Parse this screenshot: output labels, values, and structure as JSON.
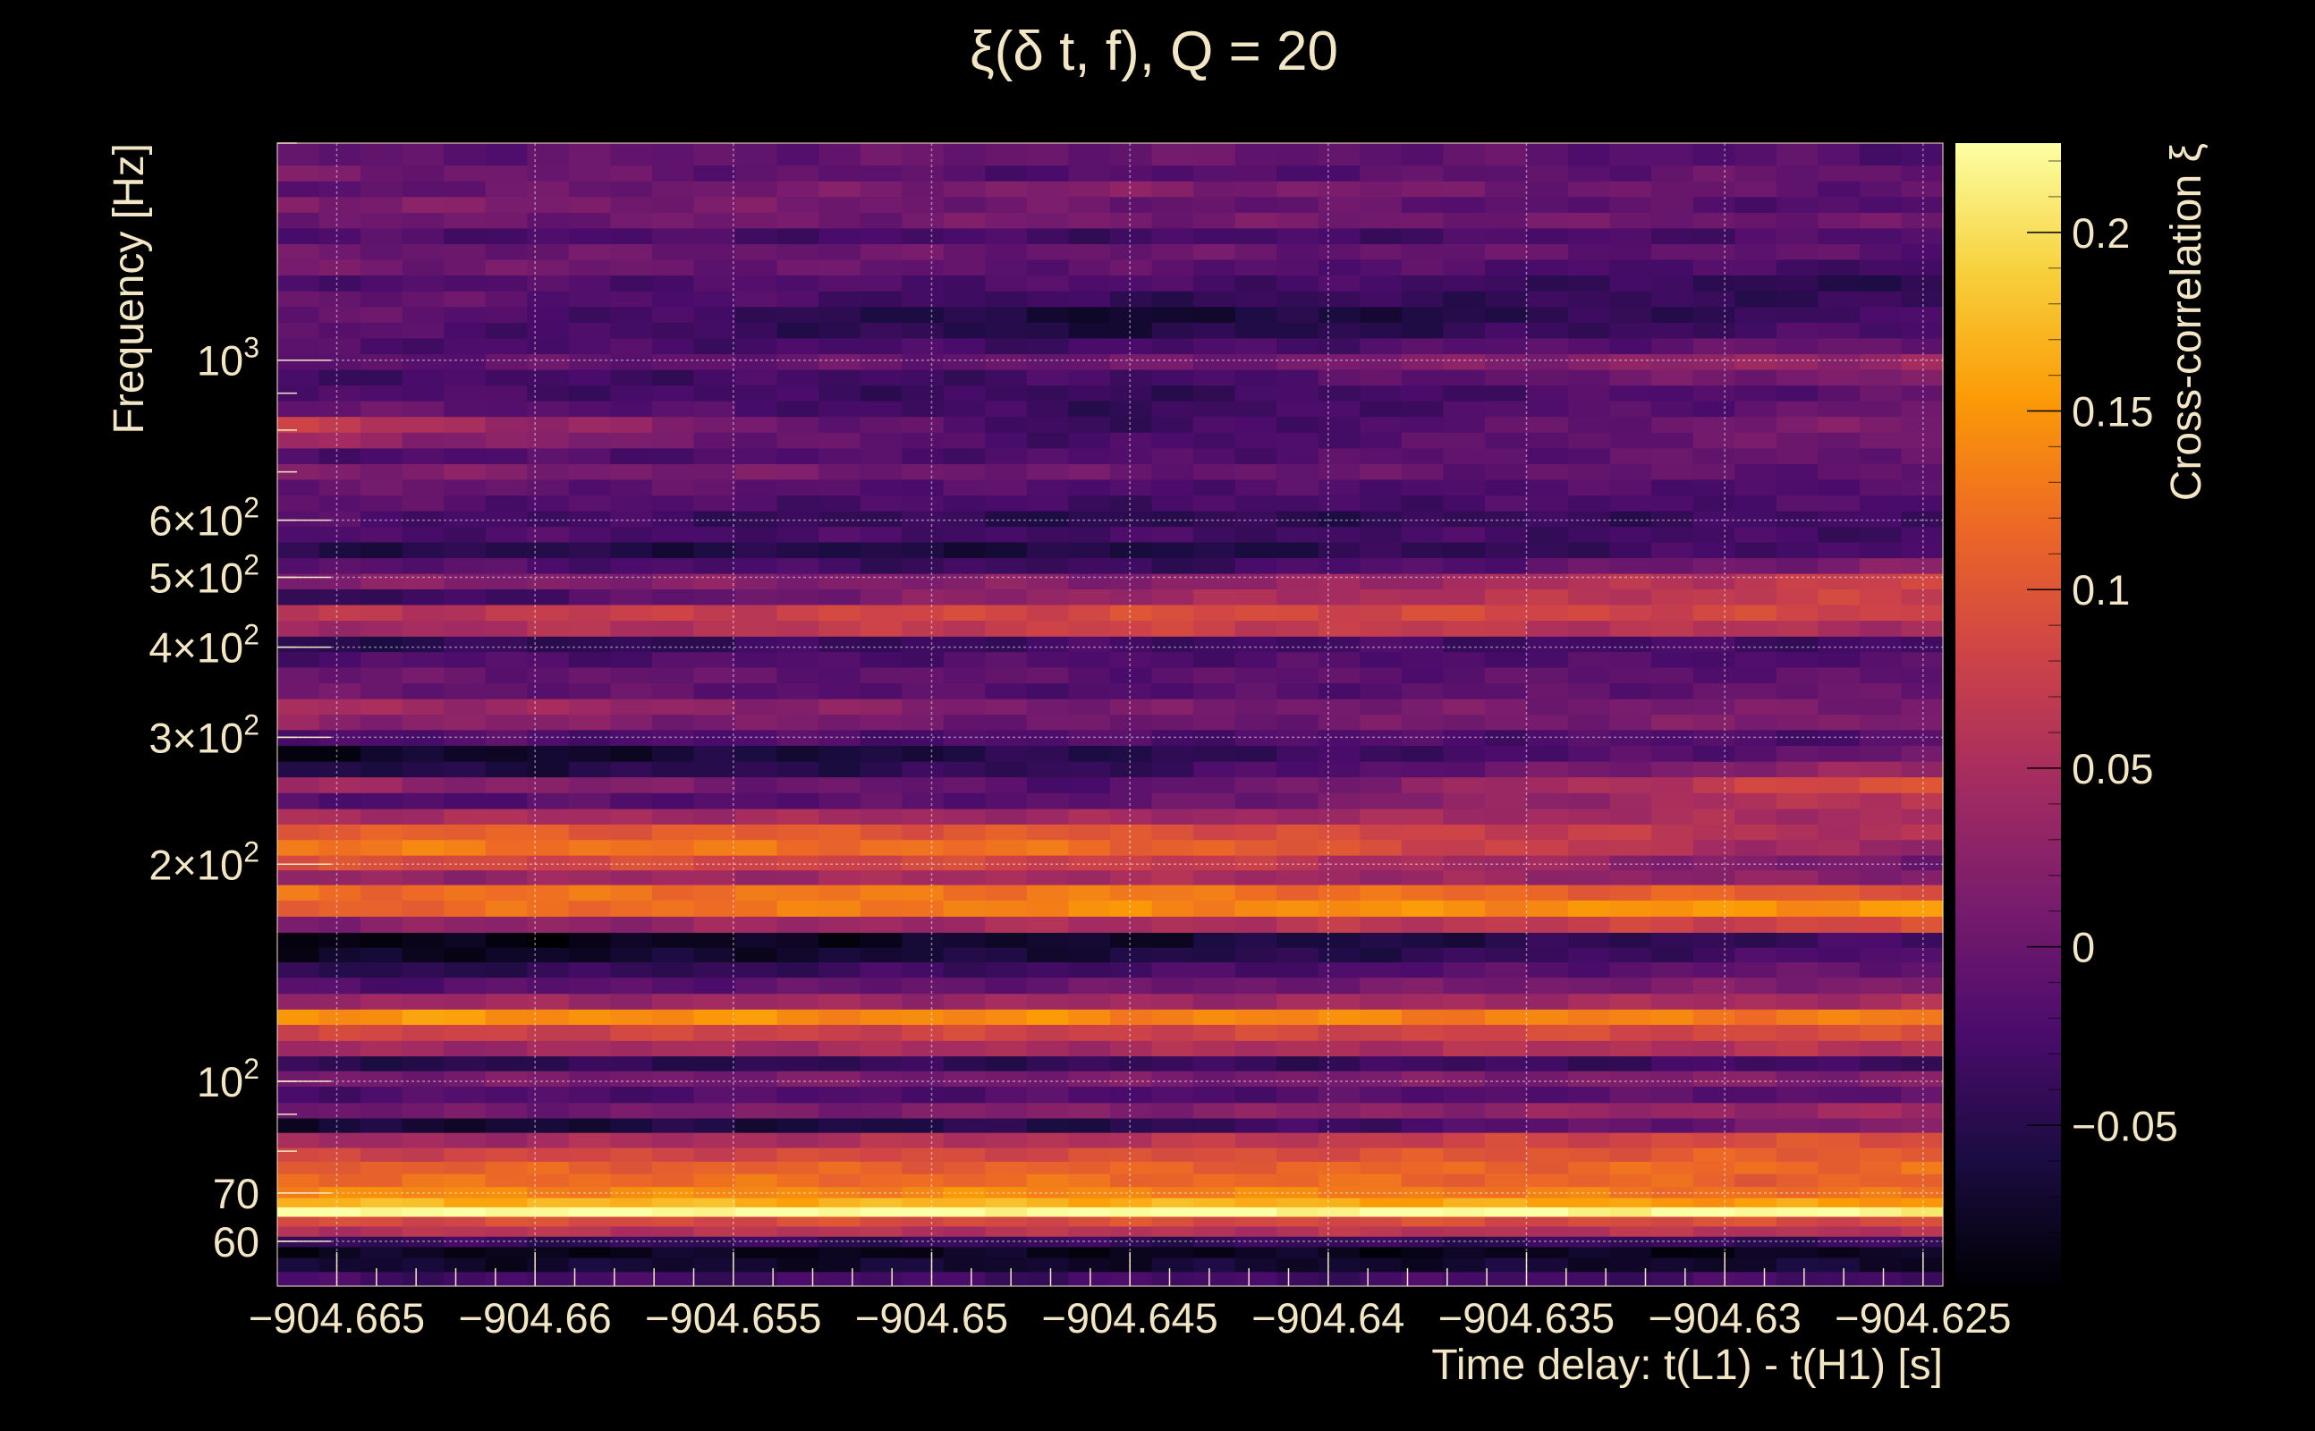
{
  "chart_data": {
    "type": "heatmap",
    "title": "ξ(δ t, f), Q = 20",
    "xlabel": "Time delay: t(L1) - t(H1) [s]",
    "ylabel": "Frequency [Hz]",
    "colorbar_label": "Cross-correlation ξ",
    "xlim": [
      -904.6665,
      -904.6245
    ],
    "ylim": [
      52,
      2000
    ],
    "yscale": "log",
    "zlim": [
      -0.095,
      0.225
    ],
    "grid": true,
    "colormap": [
      "#000004",
      "#1b0c41",
      "#4a0c6b",
      "#781c6d",
      "#a52c60",
      "#cf4446",
      "#ed6925",
      "#fb9b06",
      "#f7d13d",
      "#fcffa4"
    ],
    "x_ticks": [
      {
        "value": -904.665,
        "label": "−904.665"
      },
      {
        "value": -904.66,
        "label": "−904.66"
      },
      {
        "value": -904.655,
        "label": "−904.655"
      },
      {
        "value": -904.65,
        "label": "−904.65"
      },
      {
        "value": -904.645,
        "label": "−904.645"
      },
      {
        "value": -904.64,
        "label": "−904.64"
      },
      {
        "value": -904.635,
        "label": "−904.635"
      },
      {
        "value": -904.63,
        "label": "−904.63"
      },
      {
        "value": -904.625,
        "label": "−904.625"
      }
    ],
    "y_ticks": [
      {
        "value": 60,
        "label": "60"
      },
      {
        "value": 70,
        "label": "70"
      },
      {
        "value": 100,
        "label": "10",
        "sup": "2"
      },
      {
        "value": 200,
        "label": "2×10",
        "sup": "2"
      },
      {
        "value": 300,
        "label": "3×10",
        "sup": "2"
      },
      {
        "value": 400,
        "label": "4×10",
        "sup": "2"
      },
      {
        "value": 500,
        "label": "5×10",
        "sup": "2"
      },
      {
        "value": 600,
        "label": "6×10",
        "sup": "2"
      },
      {
        "value": 1000,
        "label": "10",
        "sup": "3"
      }
    ],
    "z_ticks": [
      {
        "value": -0.05,
        "label": "−0.05"
      },
      {
        "value": 0,
        "label": "0"
      },
      {
        "value": 0.05,
        "label": "0.05"
      },
      {
        "value": 0.1,
        "label": "0.1"
      },
      {
        "value": 0.15,
        "label": "0.15"
      },
      {
        "value": 0.2,
        "label": "0.2"
      }
    ],
    "bands": [
      {
        "f": 53,
        "z": [
          -0.03,
          -0.03,
          -0.03
        ]
      },
      {
        "f": 56,
        "z": [
          -0.07,
          -0.07,
          -0.07
        ]
      },
      {
        "f": 58,
        "z": [
          -0.08,
          -0.08,
          -0.08
        ]
      },
      {
        "f": 60,
        "z": [
          -0.04,
          -0.04,
          -0.04
        ]
      },
      {
        "f": 62,
        "z": [
          0.06,
          0.06,
          0.06
        ]
      },
      {
        "f": 64,
        "z": [
          0.09,
          0.09,
          0.09
        ]
      },
      {
        "f": 66,
        "z": [
          0.225,
          0.225,
          0.22
        ]
      },
      {
        "f": 68,
        "z": [
          0.17,
          0.17,
          0.15
        ]
      },
      {
        "f": 70,
        "z": [
          0.14,
          0.14,
          0.12
        ]
      },
      {
        "f": 73,
        "z": [
          0.12,
          0.12,
          0.11
        ]
      },
      {
        "f": 76,
        "z": [
          0.11,
          0.11,
          0.12
        ]
      },
      {
        "f": 79,
        "z": [
          0.08,
          0.09,
          0.11
        ]
      },
      {
        "f": 83,
        "z": [
          0.04,
          0.06,
          0.1
        ]
      },
      {
        "f": 87,
        "z": [
          -0.07,
          -0.05,
          0.02
        ]
      },
      {
        "f": 91,
        "z": [
          0.0,
          0.02,
          0.04
        ]
      },
      {
        "f": 96,
        "z": [
          -0.02,
          -0.02,
          -0.01
        ]
      },
      {
        "f": 101,
        "z": [
          0.01,
          0.01,
          0.02
        ]
      },
      {
        "f": 106,
        "z": [
          -0.05,
          -0.04,
          -0.03
        ]
      },
      {
        "f": 111,
        "z": [
          0.04,
          0.05,
          0.06
        ]
      },
      {
        "f": 117,
        "z": [
          0.08,
          0.08,
          0.09
        ]
      },
      {
        "f": 123,
        "z": [
          0.15,
          0.14,
          0.13
        ]
      },
      {
        "f": 129,
        "z": [
          0.04,
          0.04,
          0.05
        ]
      },
      {
        "f": 136,
        "z": [
          -0.02,
          0.0,
          0.02
        ]
      },
      {
        "f": 143,
        "z": [
          -0.05,
          -0.03,
          0.0
        ]
      },
      {
        "f": 150,
        "z": [
          -0.08,
          -0.06,
          -0.02
        ]
      },
      {
        "f": 157,
        "z": [
          -0.09,
          -0.07,
          -0.03
        ]
      },
      {
        "f": 165,
        "z": [
          0.02,
          0.05,
          0.09
        ]
      },
      {
        "f": 174,
        "z": [
          0.11,
          0.14,
          0.15
        ]
      },
      {
        "f": 183,
        "z": [
          0.12,
          0.13,
          0.1
        ]
      },
      {
        "f": 192,
        "z": [
          0.03,
          0.05,
          0.02
        ]
      },
      {
        "f": 201,
        "z": [
          0.09,
          0.08,
          0.0
        ]
      },
      {
        "f": 211,
        "z": [
          0.13,
          0.12,
          0.03
        ]
      },
      {
        "f": 222,
        "z": [
          0.11,
          0.1,
          0.05
        ]
      },
      {
        "f": 233,
        "z": [
          0.05,
          0.04,
          0.05
        ]
      },
      {
        "f": 245,
        "z": [
          -0.02,
          -0.01,
          0.07
        ]
      },
      {
        "f": 258,
        "z": [
          0.04,
          -0.02,
          0.1
        ]
      },
      {
        "f": 271,
        "z": [
          -0.06,
          -0.04,
          0.04
        ]
      },
      {
        "f": 285,
        "z": [
          -0.08,
          -0.05,
          0.0
        ]
      },
      {
        "f": 300,
        "z": [
          -0.02,
          -0.02,
          -0.02
        ]
      },
      {
        "f": 315,
        "z": [
          0.03,
          0.0,
          0.02
        ]
      },
      {
        "f": 331,
        "z": [
          0.05,
          0.01,
          0.01
        ]
      },
      {
        "f": 348,
        "z": [
          0.0,
          -0.02,
          0.0
        ]
      },
      {
        "f": 366,
        "z": [
          0.0,
          -0.01,
          -0.01
        ]
      },
      {
        "f": 385,
        "z": [
          -0.02,
          -0.02,
          -0.02
        ]
      },
      {
        "f": 404,
        "z": [
          -0.05,
          -0.03,
          -0.03
        ]
      },
      {
        "f": 425,
        "z": [
          0.04,
          0.08,
          0.05
        ]
      },
      {
        "f": 447,
        "z": [
          0.06,
          0.09,
          0.08
        ]
      },
      {
        "f": 470,
        "z": [
          -0.05,
          0.04,
          0.08
        ]
      },
      {
        "f": 494,
        "z": [
          0.02,
          0.02,
          0.08
        ]
      },
      {
        "f": 519,
        "z": [
          -0.01,
          -0.04,
          0.02
        ]
      },
      {
        "f": 546,
        "z": [
          -0.05,
          -0.06,
          -0.02
        ]
      },
      {
        "f": 574,
        "z": [
          -0.02,
          -0.03,
          -0.03
        ]
      },
      {
        "f": 603,
        "z": [
          -0.02,
          -0.05,
          -0.03
        ]
      },
      {
        "f": 634,
        "z": [
          -0.01,
          -0.03,
          -0.02
        ]
      },
      {
        "f": 667,
        "z": [
          0.0,
          -0.02,
          -0.02
        ]
      },
      {
        "f": 701,
        "z": [
          0.02,
          0.0,
          -0.01
        ]
      },
      {
        "f": 737,
        "z": [
          -0.02,
          -0.02,
          0.0
        ]
      },
      {
        "f": 775,
        "z": [
          0.04,
          -0.03,
          0.01
        ]
      },
      {
        "f": 815,
        "z": [
          0.07,
          -0.04,
          0.02
        ]
      },
      {
        "f": 857,
        "z": [
          0.0,
          -0.04,
          0.0
        ]
      },
      {
        "f": 901,
        "z": [
          -0.02,
          -0.04,
          -0.01
        ]
      },
      {
        "f": 947,
        "z": [
          -0.03,
          -0.03,
          0.02
        ]
      },
      {
        "f": 996,
        "z": [
          -0.01,
          0.0,
          0.04
        ]
      },
      {
        "f": 1047,
        "z": [
          -0.02,
          -0.03,
          0.0
        ]
      },
      {
        "f": 1101,
        "z": [
          -0.01,
          -0.06,
          -0.02
        ]
      },
      {
        "f": 1158,
        "z": [
          0.0,
          -0.07,
          -0.03
        ]
      },
      {
        "f": 1217,
        "z": [
          0.0,
          -0.04,
          -0.04
        ]
      },
      {
        "f": 1280,
        "z": [
          -0.02,
          -0.02,
          -0.05
        ]
      },
      {
        "f": 1346,
        "z": [
          0.01,
          -0.01,
          -0.03
        ]
      },
      {
        "f": 1415,
        "z": [
          0.0,
          0.0,
          -0.01
        ]
      },
      {
        "f": 1488,
        "z": [
          -0.02,
          -0.03,
          -0.02
        ]
      },
      {
        "f": 1564,
        "z": [
          0.0,
          0.01,
          0.0
        ]
      },
      {
        "f": 1645,
        "z": [
          0.02,
          0.0,
          -0.02
        ]
      },
      {
        "f": 1729,
        "z": [
          -0.01,
          0.02,
          -0.01
        ]
      },
      {
        "f": 1818,
        "z": [
          0.01,
          -0.02,
          0.0
        ]
      },
      {
        "f": 1912,
        "z": [
          -0.01,
          0.0,
          -0.02
        ]
      }
    ]
  }
}
